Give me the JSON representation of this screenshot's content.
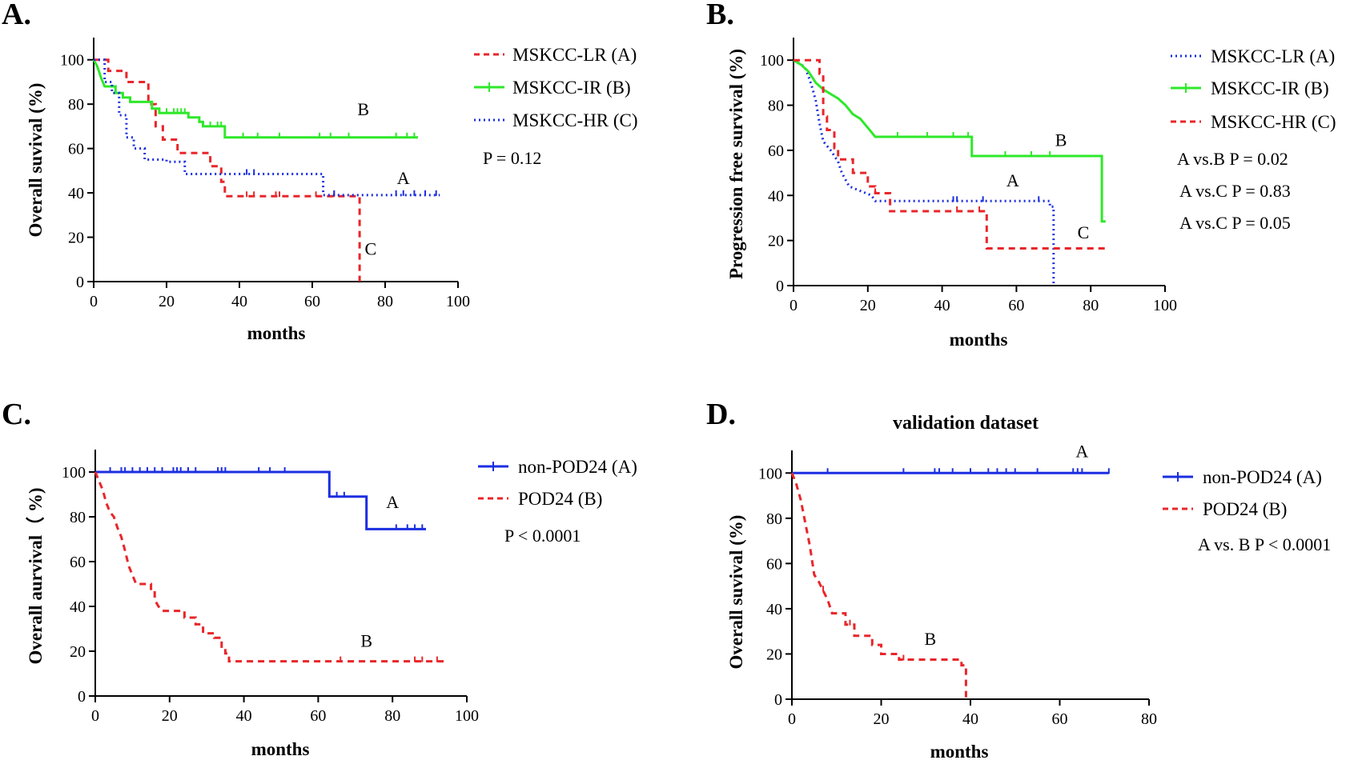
{
  "chart_data": [
    {
      "type": "line",
      "subtype": "kaplan-meier",
      "panel": "A.",
      "title": "",
      "xlabel": "months",
      "ylabel": "Overall suvival (%)",
      "xlim": [
        0,
        100
      ],
      "ylim": [
        0,
        110
      ],
      "xticks": [
        0,
        20,
        40,
        60,
        80,
        100
      ],
      "yticks": [
        0,
        20,
        40,
        60,
        80,
        100
      ],
      "series": [
        {
          "name": "MSKCC-LR (A)",
          "color": "#e8262a",
          "style": "dashed",
          "points": [
            [
              0,
              100
            ],
            [
              4,
              100
            ],
            [
              4,
              95
            ],
            [
              9,
              95
            ],
            [
              9,
              90
            ],
            [
              15,
              90
            ],
            [
              15,
              80
            ],
            [
              17,
              80
            ],
            [
              17,
              70
            ],
            [
              19,
              70
            ],
            [
              19,
              64
            ],
            [
              23,
              64
            ],
            [
              23,
              58
            ],
            [
              32,
              58
            ],
            [
              32,
              52
            ],
            [
              35,
              52
            ],
            [
              35,
              45
            ],
            [
              36,
              45
            ],
            [
              36,
              38.5
            ],
            [
              73,
              38.5
            ],
            [
              73,
              0
            ]
          ],
          "censor": [
            42,
            44,
            50,
            51,
            61,
            66
          ],
          "label": "C",
          "label_pos": [
            76,
            12
          ]
        },
        {
          "name": "MSKCC-IR (B)",
          "color": "#2ee82a",
          "style": "solid",
          "points": [
            [
              0,
              100
            ],
            [
              1,
              97
            ],
            [
              2,
              92
            ],
            [
              3,
              88
            ],
            [
              6,
              88
            ],
            [
              6,
              85
            ],
            [
              8,
              85
            ],
            [
              8,
              83
            ],
            [
              10,
              83
            ],
            [
              10,
              81
            ],
            [
              16,
              81
            ],
            [
              16,
              78
            ],
            [
              18,
              78
            ],
            [
              18,
              76
            ],
            [
              26,
              76
            ],
            [
              26,
              74
            ],
            [
              29,
              74
            ],
            [
              29,
              72
            ],
            [
              30,
              72
            ],
            [
              30,
              70
            ],
            [
              36,
              70
            ],
            [
              36,
              65
            ],
            [
              89,
              65
            ]
          ],
          "censor": [
            20,
            22,
            23,
            24,
            25,
            32,
            34,
            35,
            41,
            45,
            51,
            62,
            65,
            70,
            83,
            86,
            88
          ],
          "label": "B",
          "label_pos": [
            74,
            75
          ]
        },
        {
          "name": "MSKCC-HR (C)",
          "color": "#1b2ee0",
          "style": "dotted",
          "points": [
            [
              0,
              100
            ],
            [
              3,
              100
            ],
            [
              3,
              90
            ],
            [
              5,
              90
            ],
            [
              5,
              85
            ],
            [
              7,
              85
            ],
            [
              7,
              75
            ],
            [
              9,
              75
            ],
            [
              9,
              65
            ],
            [
              11,
              65
            ],
            [
              11,
              60
            ],
            [
              14,
              60
            ],
            [
              14,
              55
            ],
            [
              20,
              55
            ],
            [
              20,
              54
            ],
            [
              25,
              54
            ],
            [
              25,
              48.5
            ],
            [
              63,
              48.5
            ],
            [
              63,
              39
            ],
            [
              95,
              39
            ]
          ],
          "censor": [
            42,
            44,
            66,
            83,
            85,
            88,
            91,
            94
          ],
          "label": "A",
          "label_pos": [
            85,
            44
          ]
        }
      ],
      "legend": [
        "MSKCC-LR (A)",
        "MSKCC-IR (B)",
        "MSKCC-HR (C)"
      ],
      "annotations": [
        "P = 0.12"
      ]
    },
    {
      "type": "line",
      "subtype": "kaplan-meier",
      "panel": "B.",
      "title": "",
      "xlabel": "months",
      "ylabel": "Progression free survival (%)",
      "xlim": [
        0,
        100
      ],
      "ylim": [
        0,
        110
      ],
      "xticks": [
        0,
        20,
        40,
        60,
        80,
        100
      ],
      "yticks": [
        0,
        20,
        40,
        60,
        80,
        100
      ],
      "series": [
        {
          "name": "MSKCC-LR (A)",
          "color": "#1b2ee0",
          "style": "dotted",
          "points": [
            [
              0,
              100
            ],
            [
              3,
              97
            ],
            [
              4,
              93
            ],
            [
              5,
              88
            ],
            [
              6,
              82
            ],
            [
              7,
              72
            ],
            [
              8,
              64
            ],
            [
              10,
              60
            ],
            [
              12,
              55
            ],
            [
              13,
              50
            ],
            [
              15,
              44
            ],
            [
              21,
              40
            ],
            [
              22,
              37.5
            ],
            [
              69,
              37.5
            ],
            [
              69,
              35
            ],
            [
              70,
              35
            ],
            [
              70,
              0
            ]
          ],
          "censor": [
            43,
            44,
            51,
            66
          ],
          "label": "A",
          "label_pos": [
            59,
            44
          ]
        },
        {
          "name": "MSKCC-IR (B)",
          "color": "#2ee82a",
          "style": "solid",
          "points": [
            [
              0,
              100
            ],
            [
              2,
              98
            ],
            [
              4,
              95
            ],
            [
              6,
              90
            ],
            [
              8,
              87
            ],
            [
              10,
              85
            ],
            [
              12,
              83
            ],
            [
              14,
              80
            ],
            [
              16,
              76
            ],
            [
              18,
              74
            ],
            [
              20,
              70
            ],
            [
              22,
              66
            ],
            [
              48,
              66
            ],
            [
              48,
              57.5
            ],
            [
              83,
              57.5
            ],
            [
              83,
              28.5
            ],
            [
              84,
              28.5
            ]
          ],
          "censor": [
            28,
            36,
            43,
            47,
            57,
            64,
            69
          ],
          "label": "B",
          "label_pos": [
            72,
            62
          ]
        },
        {
          "name": "MSKCC-HR (C)",
          "color": "#e8262a",
          "style": "dashed",
          "points": [
            [
              0,
              100
            ],
            [
              7,
              100
            ],
            [
              7,
              94
            ],
            [
              8,
              94
            ],
            [
              8,
              75
            ],
            [
              9,
              75
            ],
            [
              9,
              69
            ],
            [
              11,
              69
            ],
            [
              11,
              61
            ],
            [
              12,
              61
            ],
            [
              12,
              56
            ],
            [
              16,
              56
            ],
            [
              16,
              50
            ],
            [
              20,
              50
            ],
            [
              20,
              44
            ],
            [
              22,
              44
            ],
            [
              22,
              41
            ],
            [
              26,
              41
            ],
            [
              26,
              33
            ],
            [
              52,
              33
            ],
            [
              52,
              16.5
            ],
            [
              84,
              16.5
            ]
          ],
          "censor": [
            16,
            22,
            44,
            50
          ],
          "label": "C",
          "label_pos": [
            78,
            21
          ]
        }
      ],
      "legend": [
        "MSKCC-LR (A)",
        "MSKCC-IR (B)",
        "MSKCC-HR (C)"
      ],
      "annotations": [
        "A vs.B P = 0.02",
        "A vs.C P = 0.83",
        "A vs.C P = 0.05"
      ]
    },
    {
      "type": "line",
      "subtype": "kaplan-meier",
      "panel": "C.",
      "title": "",
      "xlabel": "months",
      "ylabel": "Overall aurvival（ %)",
      "xlim": [
        0,
        100
      ],
      "ylim": [
        0,
        110
      ],
      "xticks": [
        0,
        20,
        40,
        60,
        80,
        100
      ],
      "yticks": [
        0,
        20,
        40,
        60,
        80,
        100
      ],
      "series": [
        {
          "name": "non-POD24 (A)",
          "color": "#1b2ee0",
          "style": "solid",
          "points": [
            [
              0,
              100
            ],
            [
              63,
              100
            ],
            [
              63,
              89
            ],
            [
              73,
              89
            ],
            [
              73,
              74.5
            ],
            [
              89,
              74.5
            ]
          ],
          "censor": [
            4,
            7,
            8,
            10,
            12,
            14,
            16,
            18,
            21,
            22,
            23,
            25,
            27,
            33,
            34,
            35,
            44,
            47,
            51,
            65,
            67,
            81,
            84,
            86,
            88
          ],
          "label": "A",
          "label_pos": [
            80,
            84
          ]
        },
        {
          "name": "POD24 (B)",
          "color": "#e8262a",
          "style": "dashed",
          "points": [
            [
              0,
              100
            ],
            [
              1,
              96
            ],
            [
              2,
              92
            ],
            [
              3,
              86
            ],
            [
              4,
              82
            ],
            [
              5,
              80
            ],
            [
              6,
              75
            ],
            [
              7,
              71
            ],
            [
              8,
              65
            ],
            [
              9,
              58
            ],
            [
              10,
              54
            ],
            [
              11,
              50
            ],
            [
              15,
              50
            ],
            [
              15,
              47
            ],
            [
              16,
              47
            ],
            [
              16,
              43
            ],
            [
              17,
              40
            ],
            [
              18,
              38
            ],
            [
              24,
              38
            ],
            [
              24,
              35
            ],
            [
              27,
              35
            ],
            [
              27,
              32
            ],
            [
              29,
              32
            ],
            [
              29,
              28
            ],
            [
              32,
              28
            ],
            [
              32,
              26
            ],
            [
              34,
              26
            ],
            [
              34,
              22
            ],
            [
              35,
              22
            ],
            [
              35,
              19
            ],
            [
              36,
              19
            ],
            [
              36,
              15.5
            ],
            [
              95,
              15.5
            ]
          ],
          "censor": [
            66,
            86,
            88,
            92
          ],
          "label": "B",
          "label_pos": [
            73,
            22
          ]
        }
      ],
      "legend": [
        "non-POD24 (A)",
        "POD24 (B)"
      ],
      "annotations": [
        "P < 0.0001"
      ]
    },
    {
      "type": "line",
      "subtype": "kaplan-meier",
      "panel": "D.",
      "title": "validation dataset",
      "xlabel": "months",
      "ylabel": "Overall suvival (%)",
      "xlim": [
        0,
        80
      ],
      "ylim": [
        0,
        110
      ],
      "xticks": [
        0,
        20,
        40,
        60,
        80
      ],
      "yticks": [
        0,
        20,
        40,
        60,
        80,
        100
      ],
      "series": [
        {
          "name": "non-POD24 (A)",
          "color": "#1b2ee0",
          "style": "solid",
          "points": [
            [
              0,
              100
            ],
            [
              71,
              100
            ]
          ],
          "censor": [
            8,
            25,
            32,
            33,
            36,
            40,
            44,
            46,
            48,
            50,
            55,
            63,
            64,
            65,
            71
          ],
          "label": "A",
          "label_pos": [
            65,
            107
          ]
        },
        {
          "name": "POD24 (B)",
          "color": "#e8262a",
          "style": "dashed",
          "points": [
            [
              0,
              100
            ],
            [
              1,
              95
            ],
            [
              2,
              88
            ],
            [
              3,
              78
            ],
            [
              4,
              68
            ],
            [
              5,
              55
            ],
            [
              6,
              52
            ],
            [
              7,
              48
            ],
            [
              8,
              44
            ],
            [
              9,
              38
            ],
            [
              12,
              38
            ],
            [
              12,
              33
            ],
            [
              14,
              33
            ],
            [
              14,
              28
            ],
            [
              18,
              28
            ],
            [
              18,
              24
            ],
            [
              20,
              24
            ],
            [
              20,
              20
            ],
            [
              24,
              20
            ],
            [
              24,
              17.5
            ],
            [
              38,
              17.5
            ],
            [
              38,
              15
            ],
            [
              39,
              15
            ],
            [
              39,
              0
            ]
          ],
          "censor": [
            7,
            13,
            25
          ],
          "label": "B",
          "label_pos": [
            31,
            24
          ]
        }
      ],
      "legend": [
        "non-POD24 (A)",
        "POD24 (B)"
      ],
      "annotations": [
        "A vs. B P < 0.0001"
      ]
    }
  ]
}
